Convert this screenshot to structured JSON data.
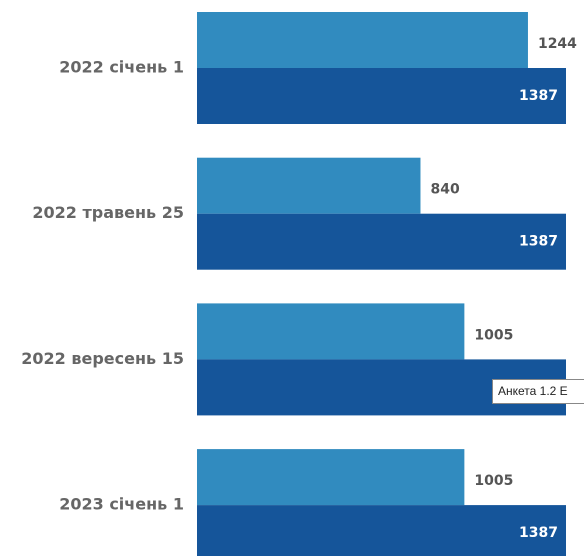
{
  "chart_data": {
    "type": "bar",
    "orientation": "horizontal",
    "categories": [
      "2022 січень 1",
      "2022 травень 25",
      "2022 вересень 15",
      "2023 січень 1"
    ],
    "series": [
      {
        "color": "#318bbf",
        "values": [
          1244,
          840,
          1005,
          1005
        ]
      },
      {
        "color": "#15559a",
        "values": [
          1387,
          1387,
          1387,
          1387
        ]
      }
    ],
    "tooltip": "Анкета 1.2 Е"
  }
}
